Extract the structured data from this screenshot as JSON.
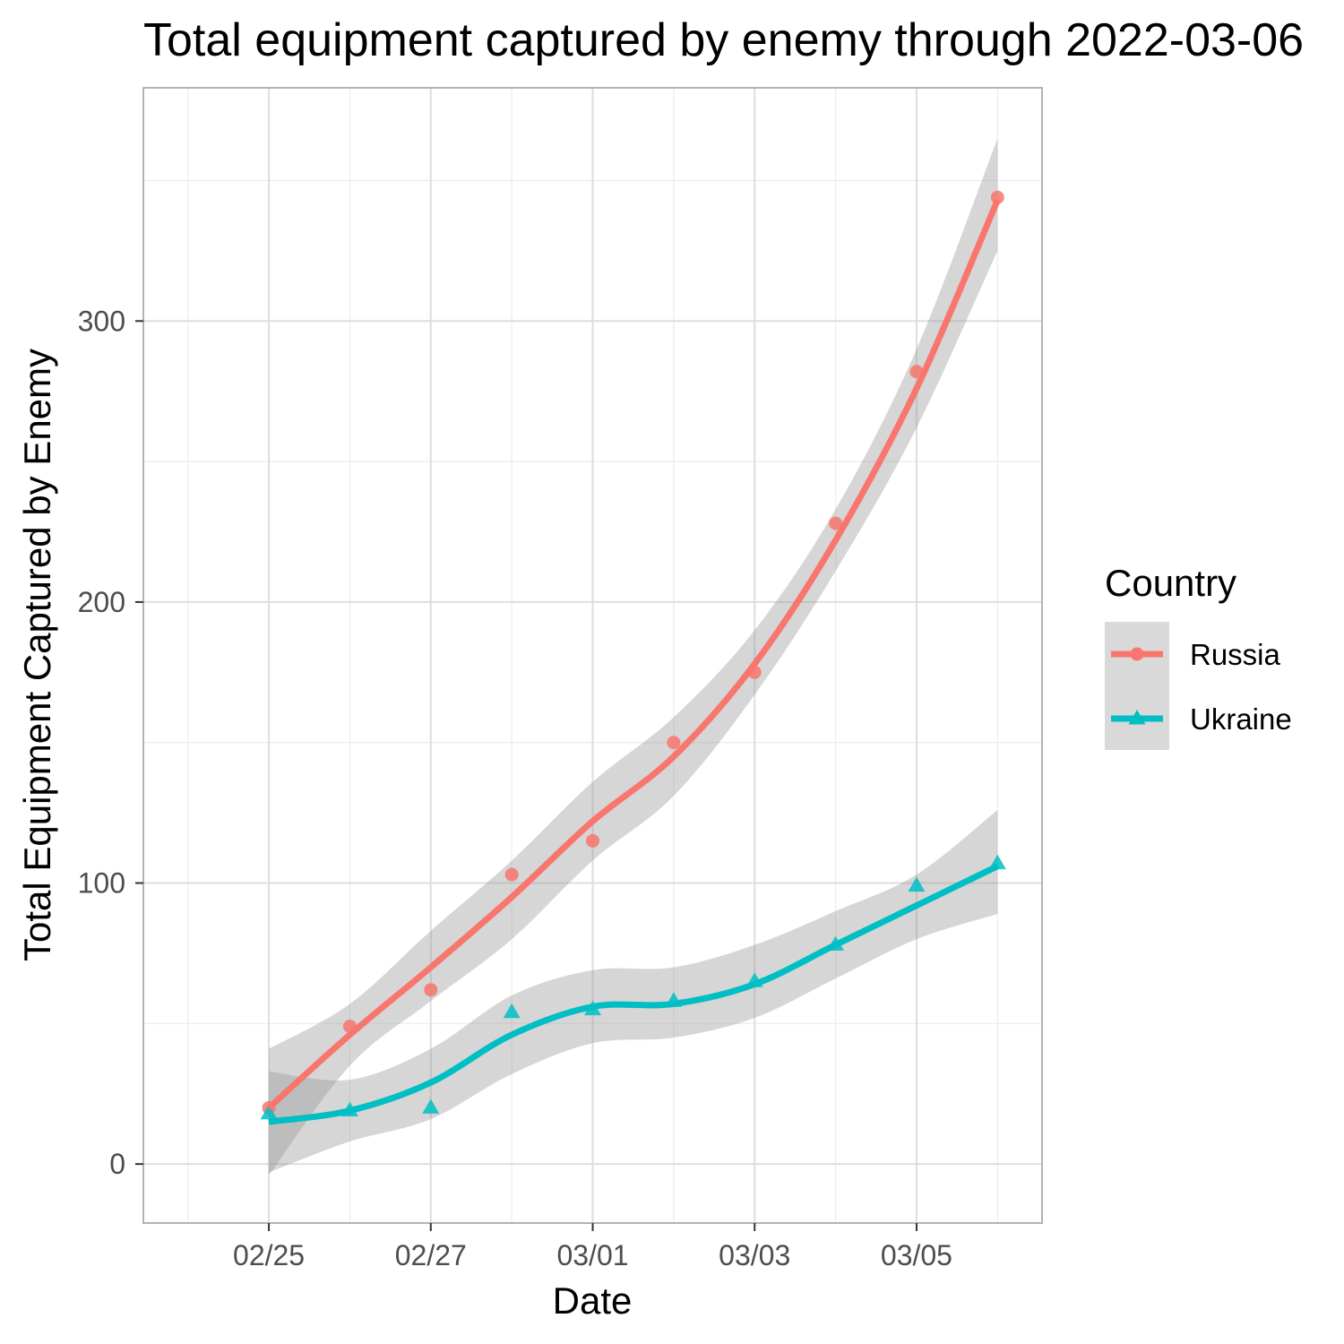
{
  "chart_data": {
    "type": "line",
    "title": "Total equipment captured by enemy through 2022-03-06",
    "xlabel": "Date",
    "ylabel": "Total Equipment Captured by Enemy",
    "x": [
      "2022-02-25",
      "2022-02-26",
      "2022-02-27",
      "2022-02-28",
      "2022-03-01",
      "2022-03-02",
      "2022-03-03",
      "2022-03-04",
      "2022-03-05",
      "2022-03-06"
    ],
    "x_ticks": [
      "02/25",
      "02/27",
      "03/01",
      "03/03",
      "03/05"
    ],
    "y_ticks": [
      0,
      100,
      200,
      300
    ],
    "ylim": [
      -21,
      383
    ],
    "xlim": [
      "2022-02-24",
      "2022-03-06"
    ],
    "grid": true,
    "legend": {
      "title": "Country",
      "position": "right"
    },
    "series": [
      {
        "name": "Russia",
        "color": "#F8766D",
        "marker": "circle",
        "values": [
          20,
          49,
          62,
          103,
          115,
          150,
          175,
          228,
          282,
          344
        ],
        "smooth": [
          20,
          46,
          70,
          95,
          122,
          145,
          178,
          222,
          276,
          343
        ],
        "band_upper": [
          41,
          57,
          83,
          108,
          136,
          159,
          190,
          233,
          290,
          365
        ],
        "band_lower": [
          -4,
          35,
          58,
          80,
          108,
          131,
          167,
          211,
          262,
          325
        ]
      },
      {
        "name": "Ukraine",
        "color": "#00BFC4",
        "marker": "triangle",
        "values": [
          18,
          19,
          20,
          54,
          55,
          58,
          65,
          78,
          99,
          107
        ],
        "smooth": [
          15,
          19,
          29,
          46,
          56,
          57,
          64,
          78,
          92,
          106
        ],
        "band_upper": [
          33,
          30,
          41,
          60,
          69,
          70,
          78,
          90,
          103,
          126
        ],
        "band_lower": [
          -3,
          8,
          16,
          32,
          43,
          45,
          52,
          66,
          80,
          89
        ]
      }
    ]
  }
}
